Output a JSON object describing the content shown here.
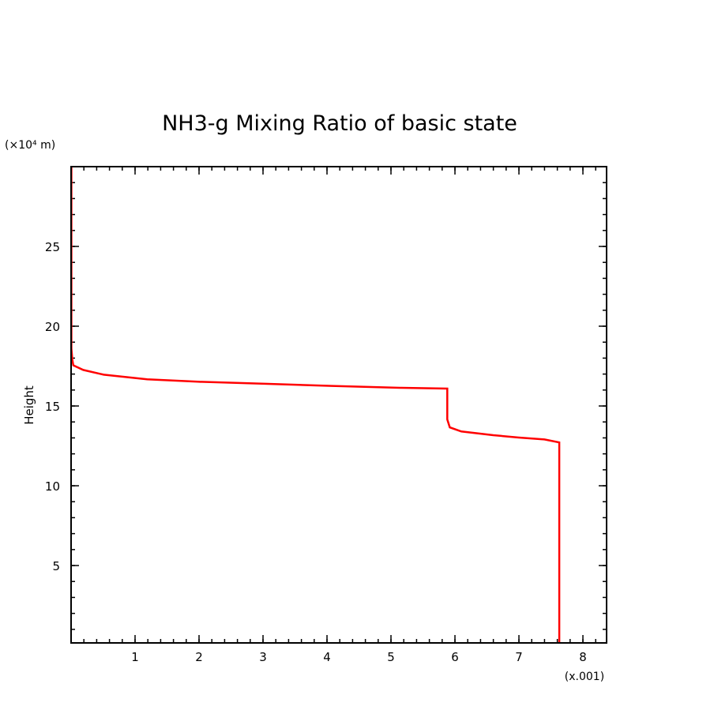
{
  "chart_data": {
    "type": "line",
    "title": "NH3-g Mixing Ratio of basic state",
    "xlabel": "",
    "x_scale_label": "(x.001)",
    "ylabel": "Height",
    "y_unit_label": "(×10⁴ m)",
    "xlim": [
      0,
      8.37
    ],
    "ylim": [
      0.15,
      30
    ],
    "x_major_ticks": [
      1,
      2,
      3,
      4,
      5,
      6,
      7,
      8
    ],
    "x_tick_labels": [
      "1",
      "2",
      "3",
      "4",
      "5",
      "6",
      "7",
      "8"
    ],
    "x_minor_step": 0.2,
    "y_major_ticks": [
      5,
      10,
      15,
      20,
      25
    ],
    "y_tick_labels": [
      "5",
      "10",
      "15",
      "20",
      "25"
    ],
    "y_minor_step": 1,
    "grid": false,
    "series": [
      {
        "name": "NH3-g mixing ratio",
        "color": "#ff0000",
        "points": [
          [
            0.005,
            30
          ],
          [
            0.005,
            18.6
          ],
          [
            0.02,
            17.9
          ],
          [
            0.035,
            17.55
          ],
          [
            0.19,
            17.26
          ],
          [
            0.51,
            16.96
          ],
          [
            1.19,
            16.67
          ],
          [
            1.98,
            16.52
          ],
          [
            3.03,
            16.39
          ],
          [
            4.08,
            16.26
          ],
          [
            5.14,
            16.14
          ],
          [
            5.88,
            16.09
          ],
          [
            5.88,
            14.16
          ],
          [
            5.92,
            13.66
          ],
          [
            6.1,
            13.4
          ],
          [
            6.6,
            13.17
          ],
          [
            7.0,
            13.02
          ],
          [
            7.4,
            12.9
          ],
          [
            7.63,
            12.72
          ],
          [
            7.63,
            0.15
          ]
        ]
      }
    ]
  }
}
